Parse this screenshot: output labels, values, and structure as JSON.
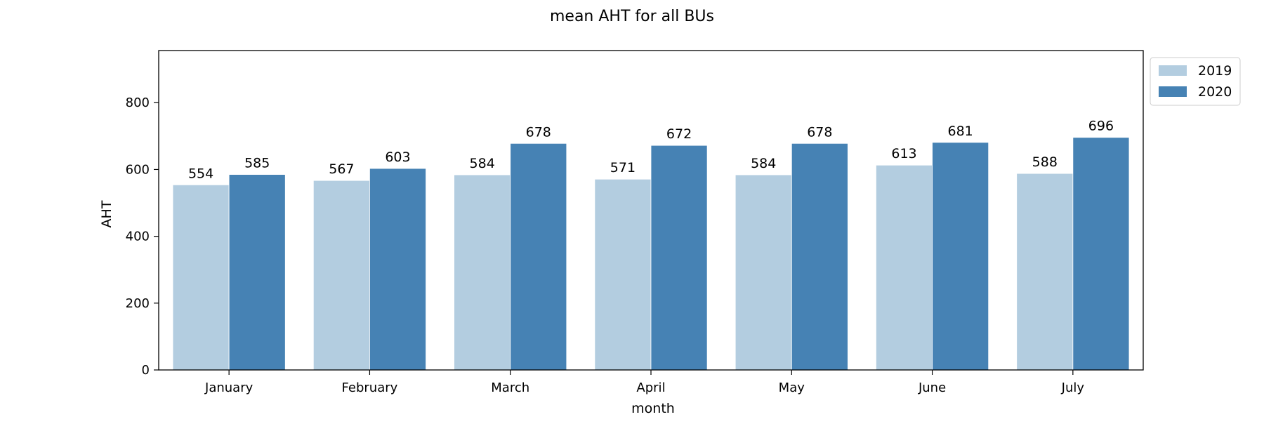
{
  "chart_data": {
    "type": "bar",
    "title": "mean AHT for all BUs",
    "xlabel": "month",
    "ylabel": "AHT",
    "categories": [
      "January",
      "February",
      "March",
      "April",
      "May",
      "June",
      "July"
    ],
    "series": [
      {
        "name": "2019",
        "color": "#b3cde0",
        "values": [
          554,
          567,
          584,
          571,
          584,
          613,
          588
        ]
      },
      {
        "name": "2020",
        "color": "#4682b4",
        "values": [
          585,
          603,
          678,
          672,
          678,
          681,
          696
        ]
      }
    ],
    "ylim": [
      0,
      956
    ],
    "yticks": [
      0,
      200,
      400,
      600,
      800
    ],
    "grid": false,
    "legend_position": "outside-top-right"
  }
}
